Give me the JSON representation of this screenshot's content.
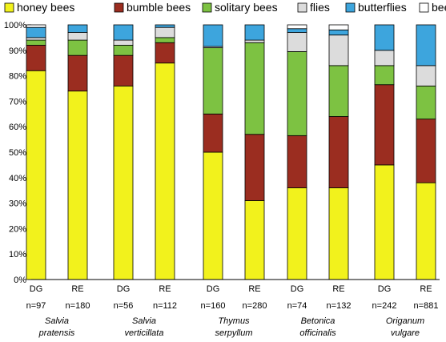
{
  "chart_data": {
    "type": "bar",
    "stacked": true,
    "legend_position": "top",
    "grid": false,
    "ylim": [
      0,
      100
    ],
    "y_ticks": [
      "0%",
      "10%",
      "20%",
      "30%",
      "40%",
      "50%",
      "60%",
      "70%",
      "80%",
      "90%",
      "100%"
    ],
    "series": [
      {
        "name": "honey bees",
        "color": "#F2F21C"
      },
      {
        "name": "bumble bees",
        "color": "#9B2D20"
      },
      {
        "name": "solitary bees",
        "color": "#7DC242"
      },
      {
        "name": "flies",
        "color": "#DCDCDC"
      },
      {
        "name": "butterflies",
        "color": "#3DA5DD"
      },
      {
        "name": "beetles",
        "color": "#FFFFFF"
      }
    ],
    "groups": [
      {
        "species_line1": "Salvia",
        "species_line2": "pratensis",
        "bars": [
          {
            "label": "DG",
            "n": "n=97",
            "values": [
              82,
              10,
              2,
              1,
              4,
              1
            ]
          },
          {
            "label": "RE",
            "n": "n=180",
            "values": [
              74,
              14,
              6,
              3,
              3,
              0
            ]
          }
        ]
      },
      {
        "species_line1": "Salvia",
        "species_line2": "verticillata",
        "bars": [
          {
            "label": "DG",
            "n": "n=56",
            "values": [
              76,
              12,
              4,
              2,
              6,
              0
            ]
          },
          {
            "label": "RE",
            "n": "n=112",
            "values": [
              85,
              8,
              2,
              4,
              1,
              0
            ]
          }
        ]
      },
      {
        "species_line1": "Thymus",
        "species_line2": "serpyllum",
        "bars": [
          {
            "label": "DG",
            "n": "n=160",
            "values": [
              50,
              15,
              26,
              0.5,
              8.5,
              0
            ]
          },
          {
            "label": "RE",
            "n": "n=280",
            "values": [
              31,
              26,
              36,
              1,
              6,
              0
            ]
          }
        ]
      },
      {
        "species_line1": "Betonica",
        "species_line2": "officinalis",
        "bars": [
          {
            "label": "DG",
            "n": "n=74",
            "values": [
              36,
              20.5,
              33,
              7.5,
              1.5,
              1.5
            ]
          },
          {
            "label": "RE",
            "n": "n=132",
            "values": [
              36,
              28,
              20,
              12,
              2,
              2
            ]
          }
        ]
      },
      {
        "species_line1": "Origanum",
        "species_line2": "vulgare",
        "bars": [
          {
            "label": "DG",
            "n": "n=242",
            "values": [
              45,
              31.5,
              7.5,
              6,
              10,
              0
            ]
          },
          {
            "label": "RE",
            "n": "n=881",
            "values": [
              38,
              25,
              13,
              8,
              16,
              0
            ]
          }
        ]
      }
    ]
  }
}
